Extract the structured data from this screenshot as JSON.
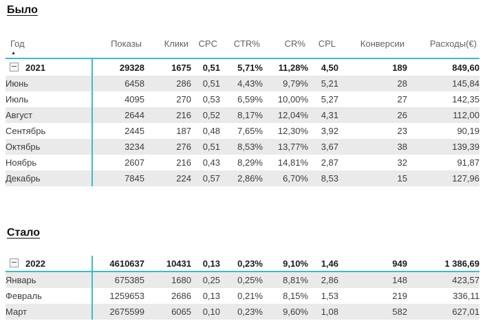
{
  "colors": {
    "accent": "#36bdcd",
    "band": "#eaeaea",
    "header-text": "#616161",
    "data-text": "#3c3c3c",
    "total-text": "#1a1a1a",
    "title-text": "#111111"
  },
  "icons": {
    "collapse": "minus-box-collapse",
    "sort": "triangle-up-ascending"
  },
  "chart_data": [
    {
      "type": "table",
      "title": "Было",
      "columns": [
        "Год",
        "Показы",
        "Клики",
        "CPC",
        "CTR%",
        "CR%",
        "CPL",
        "Конверсии",
        "Расходы(€)"
      ],
      "sort": {
        "column": "Год",
        "direction": "ascending"
      },
      "total_row": {
        "label": "2021",
        "values": [
          "29328",
          "1675",
          "0,51",
          "5,71%",
          "11,28%",
          "4,50",
          "189",
          "849,60"
        ]
      },
      "rows": [
        {
          "label": "Июнь",
          "values": [
            "6458",
            "286",
            "0,51",
            "4,43%",
            "9,79%",
            "5,21",
            "28",
            "145,84"
          ]
        },
        {
          "label": "Июль",
          "values": [
            "4095",
            "270",
            "0,53",
            "6,59%",
            "10,00%",
            "5,27",
            "27",
            "142,35"
          ]
        },
        {
          "label": "Август",
          "values": [
            "2644",
            "216",
            "0,52",
            "8,17%",
            "12,04%",
            "4,31",
            "26",
            "112,00"
          ]
        },
        {
          "label": "Сентябрь",
          "values": [
            "2445",
            "187",
            "0,48",
            "7,65%",
            "12,30%",
            "3,92",
            "23",
            "90,19"
          ]
        },
        {
          "label": "Октябрь",
          "values": [
            "3234",
            "276",
            "0,51",
            "8,53%",
            "13,77%",
            "3,67",
            "38",
            "139,39"
          ]
        },
        {
          "label": "Ноябрь",
          "values": [
            "2607",
            "216",
            "0,43",
            "8,29%",
            "14,81%",
            "2,87",
            "32",
            "91,87"
          ]
        },
        {
          "label": "Декабрь",
          "values": [
            "7845",
            "224",
            "0,57",
            "2,86%",
            "6,70%",
            "8,53",
            "15",
            "127,96"
          ]
        }
      ]
    },
    {
      "type": "table",
      "title": "Стало",
      "total_row": {
        "label": "2022",
        "values": [
          "4610637",
          "10431",
          "0,13",
          "0,23%",
          "9,10%",
          "1,46",
          "949",
          "1 386,69"
        ]
      },
      "rows": [
        {
          "label": "Январь",
          "values": [
            "675385",
            "1680",
            "0,25",
            "0,25%",
            "8,81%",
            "2,86",
            "148",
            "423,57"
          ]
        },
        {
          "label": "Февраль",
          "values": [
            "1259653",
            "2686",
            "0,13",
            "0,21%",
            "8,15%",
            "1,53",
            "219",
            "336,11"
          ]
        },
        {
          "label": "Март",
          "values": [
            "2675599",
            "6065",
            "0,10",
            "0,23%",
            "9,60%",
            "1,08",
            "582",
            "627,01"
          ]
        }
      ]
    }
  ]
}
